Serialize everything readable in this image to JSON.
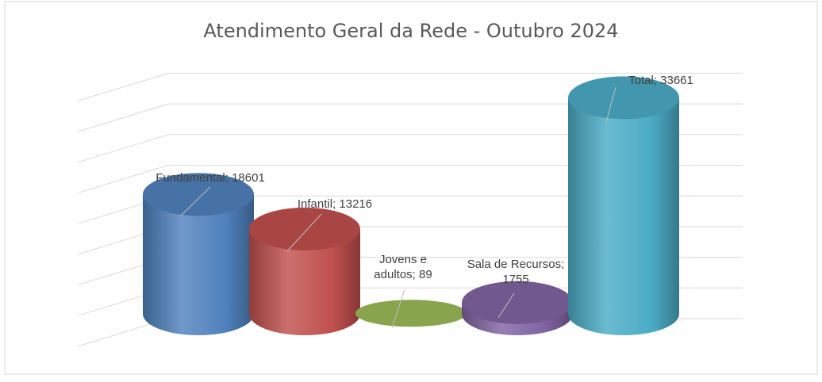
{
  "chart_data": {
    "type": "bar",
    "style": "3d-cylinder",
    "title": "Atendimento Geral da Rede - Outubro 2024",
    "xlabel": "",
    "ylabel": "",
    "ylim": [
      0,
      40000
    ],
    "grid": true,
    "legend": "none",
    "categories": [
      "Fundamental",
      "Infantil",
      "Jovens e adultos",
      "Sala de Recursos",
      "Total"
    ],
    "values": [
      18601,
      13216,
      89,
      1755,
      33661
    ],
    "data_labels": [
      [
        "Fundamental; 18601"
      ],
      [
        "Infantil; 13216"
      ],
      [
        "Jovens e",
        "adultos; 89"
      ],
      [
        "Sala de Recursos;",
        "1755"
      ],
      [
        "Total; 33661"
      ]
    ],
    "colors": [
      "#4f81bd",
      "#c0504d",
      "#9bbb59",
      "#8064a2",
      "#4bacc6"
    ]
  }
}
